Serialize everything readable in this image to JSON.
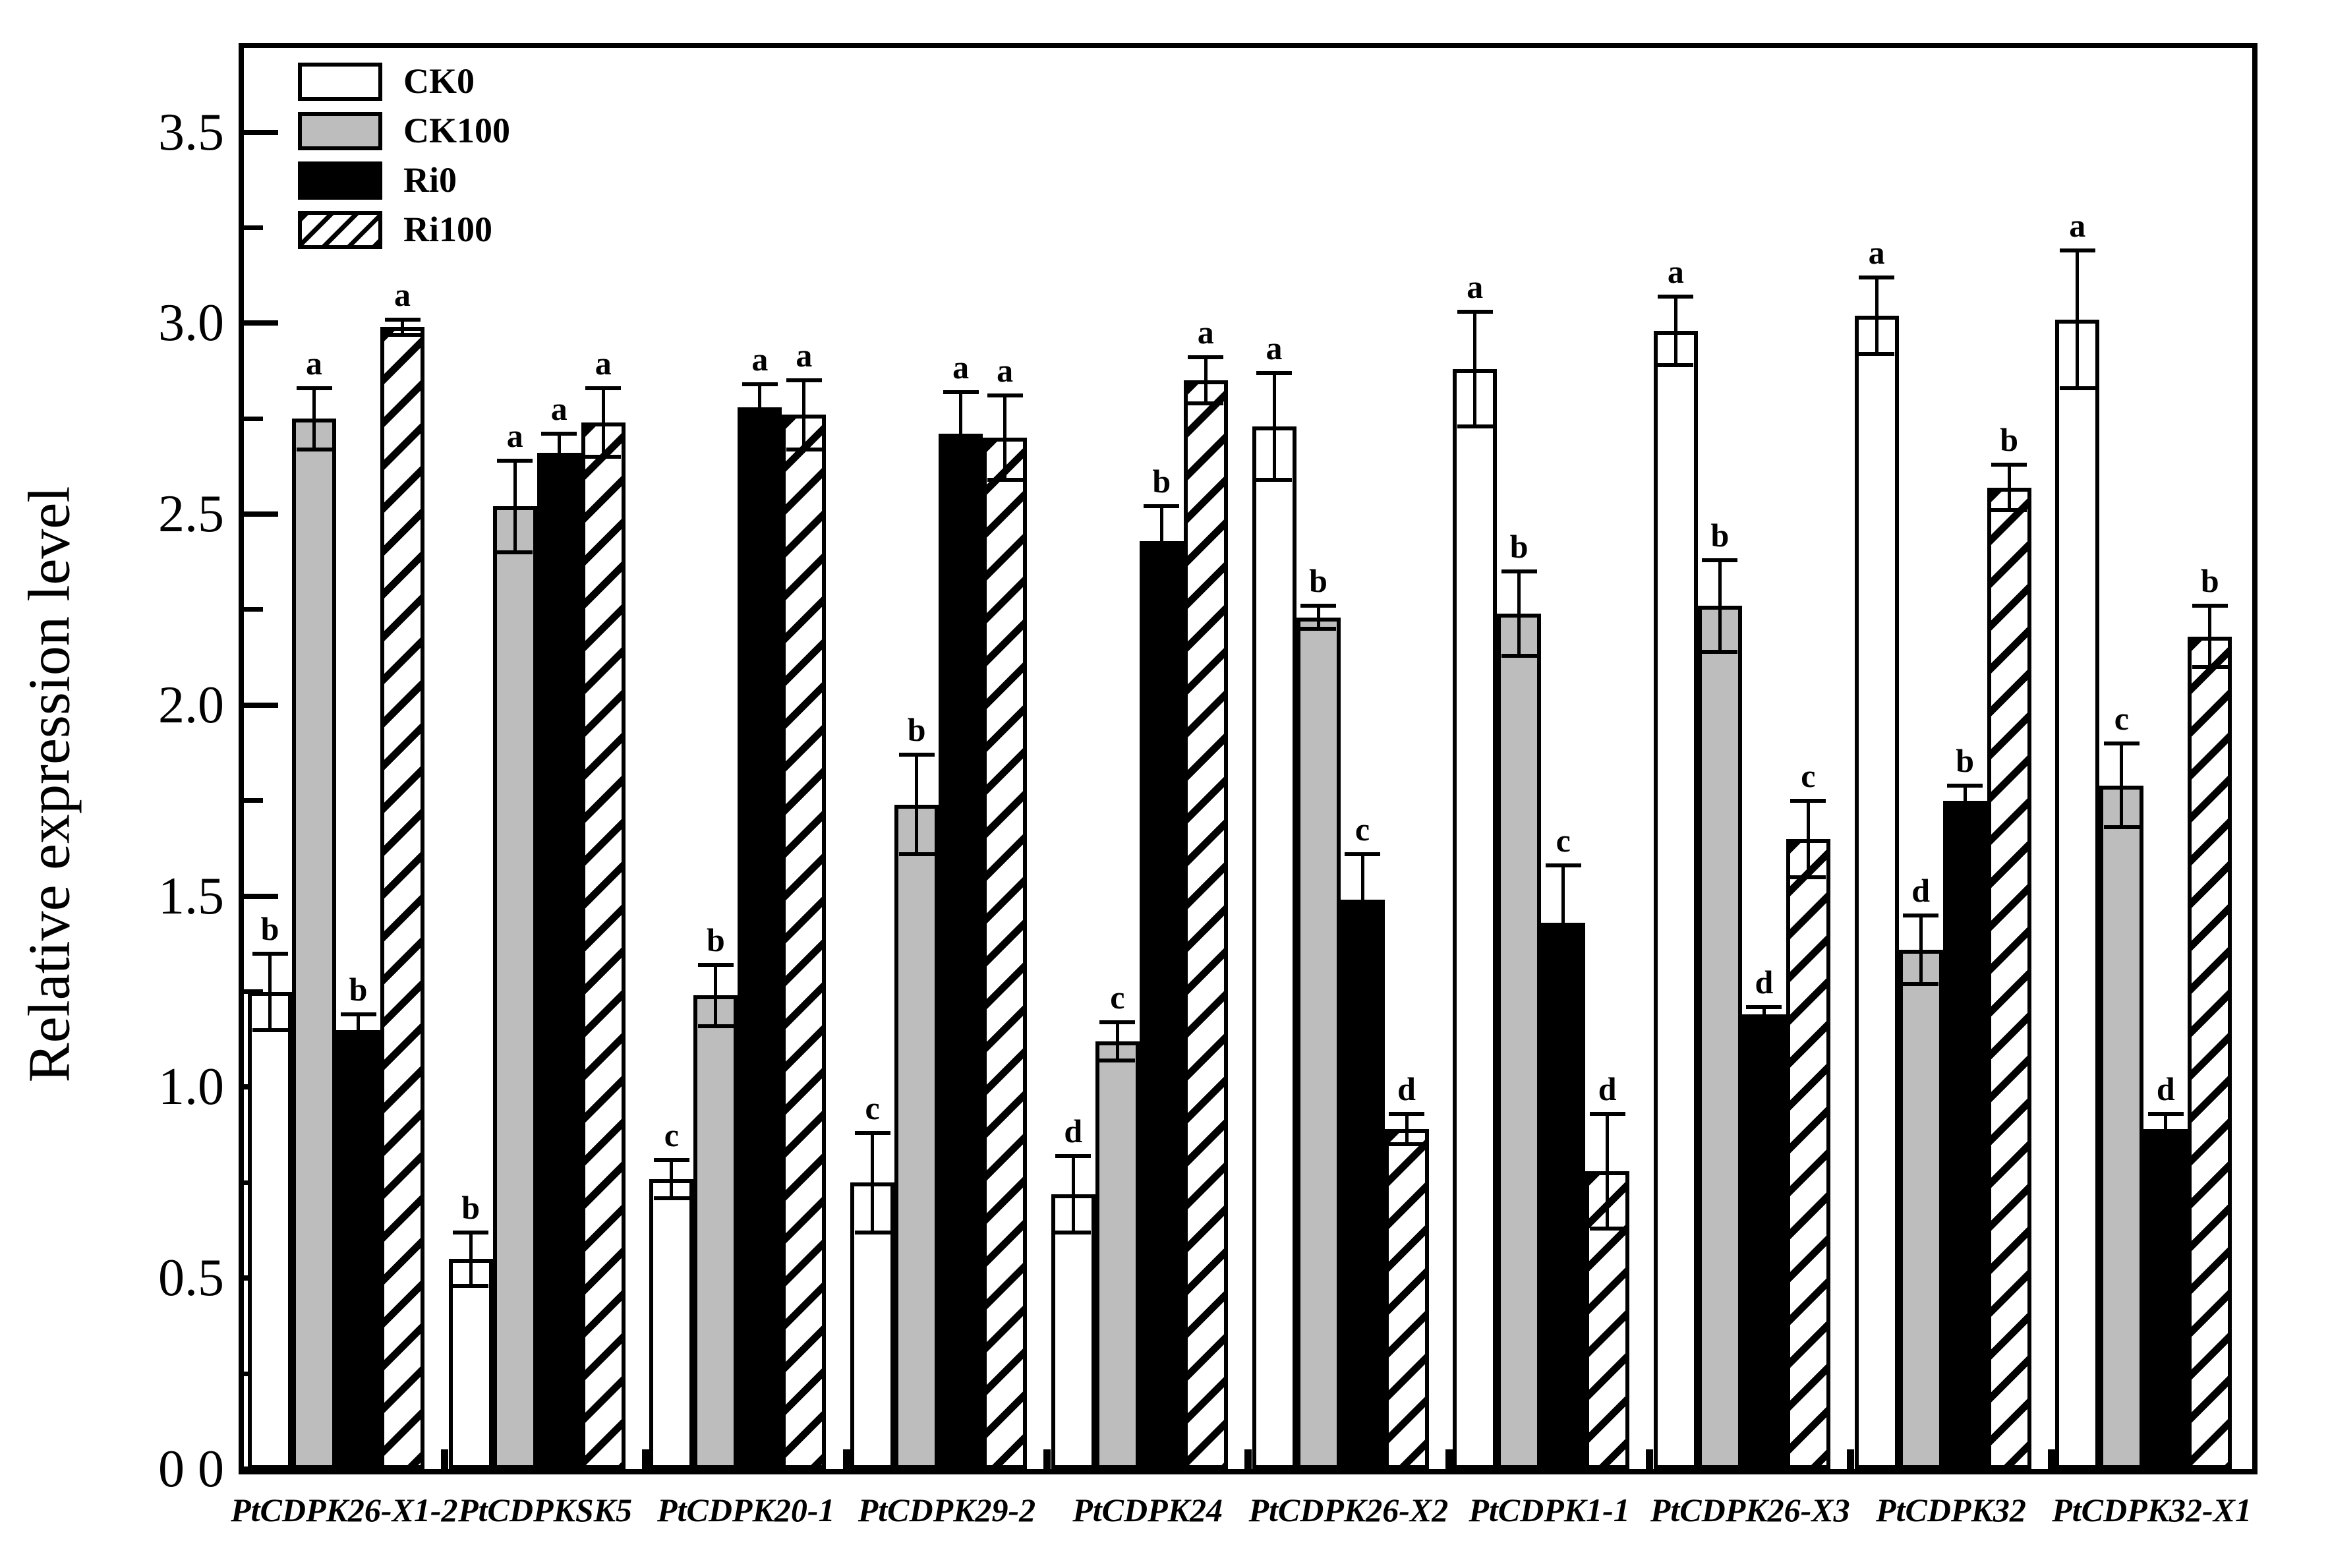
{
  "figure": {
    "y_axis_title": "Relative expression level",
    "ytick_labels": [
      "0 0",
      "0.5",
      "1.0",
      "1.5",
      "2.0",
      "2.5",
      "3.0",
      "3.5"
    ]
  },
  "colors": {
    "axis": "#000000",
    "bar_white": "#ffffff",
    "bar_gray": "#bdbdbd",
    "bar_black": "#000000",
    "hatch_stroke": "#000000"
  },
  "legend": {
    "position": "top-left",
    "entries": [
      {
        "label": "CK0",
        "pattern": "white"
      },
      {
        "label": "CK100",
        "pattern": "gray"
      },
      {
        "label": "Ri0",
        "pattern": "black"
      },
      {
        "label": "Ri100",
        "pattern": "hatch"
      }
    ]
  },
  "chart_data": {
    "type": "bar",
    "title": "",
    "xlabel": "",
    "ylabel": "Relative expression level",
    "ylim": [
      0,
      3.72
    ],
    "yticks_major": [
      0,
      0.5,
      1.0,
      1.5,
      2.0,
      2.5,
      3.0,
      3.5
    ],
    "ytick_labels": [
      "0 0",
      "0.5",
      "1.0",
      "1.5",
      "2.0",
      "2.5",
      "3.0",
      "3.5"
    ],
    "yticks_minor": [
      0.25,
      0.75,
      1.25,
      1.75,
      2.25,
      2.75,
      3.25
    ],
    "grid": false,
    "legend_position": "top-left",
    "error_bars": "symmetric",
    "categories": [
      "PtCDPK26-X1-2",
      "PtCDPKSK5",
      "PtCDPK20-1",
      "PtCDPK29-2",
      "PtCDPK24",
      "PtCDPK26-X2",
      "PtCDPK1-1",
      "PtCDPK26-X3",
      "PtCDPK32",
      "PtCDPK32-X1"
    ],
    "series": [
      {
        "name": "CK0",
        "pattern": "white",
        "values": [
          1.25,
          0.55,
          0.76,
          0.75,
          0.72,
          2.73,
          2.88,
          2.98,
          3.02,
          3.01
        ],
        "errors": [
          0.1,
          0.07,
          0.05,
          0.13,
          0.1,
          0.14,
          0.15,
          0.09,
          0.1,
          0.18
        ],
        "letters": [
          "b",
          "b",
          "c",
          "c",
          "d",
          "a",
          "a",
          "a",
          "a",
          "a"
        ]
      },
      {
        "name": "CK100",
        "pattern": "gray",
        "values": [
          2.75,
          2.52,
          1.24,
          1.74,
          1.12,
          2.23,
          2.24,
          2.26,
          1.36,
          1.79
        ],
        "errors": [
          0.08,
          0.12,
          0.08,
          0.13,
          0.05,
          0.03,
          0.11,
          0.12,
          0.09,
          0.11
        ],
        "letters": [
          "a",
          "a",
          "b",
          "b",
          "c",
          "b",
          "b",
          "b",
          "d",
          "c"
        ]
      },
      {
        "name": "Ri0",
        "pattern": "black",
        "values": [
          1.15,
          2.66,
          2.78,
          2.71,
          2.43,
          1.49,
          1.43,
          1.19,
          1.75,
          0.89
        ],
        "errors": [
          0.04,
          0.05,
          0.06,
          0.11,
          0.09,
          0.12,
          0.15,
          0.02,
          0.04,
          0.04
        ],
        "letters": [
          "b",
          "a",
          "a",
          "a",
          "b",
          "c",
          "c",
          "d",
          "b",
          "d"
        ]
      },
      {
        "name": "Ri100",
        "pattern": "hatch",
        "values": [
          2.99,
          2.74,
          2.76,
          2.7,
          2.85,
          0.89,
          0.78,
          1.65,
          2.57,
          2.18
        ],
        "errors": [
          0.02,
          0.09,
          0.09,
          0.11,
          0.06,
          0.04,
          0.15,
          0.1,
          0.06,
          0.08
        ],
        "letters": [
          "a",
          "a",
          "a",
          "a",
          "a",
          "d",
          "d",
          "c",
          "b",
          "b"
        ]
      }
    ]
  }
}
